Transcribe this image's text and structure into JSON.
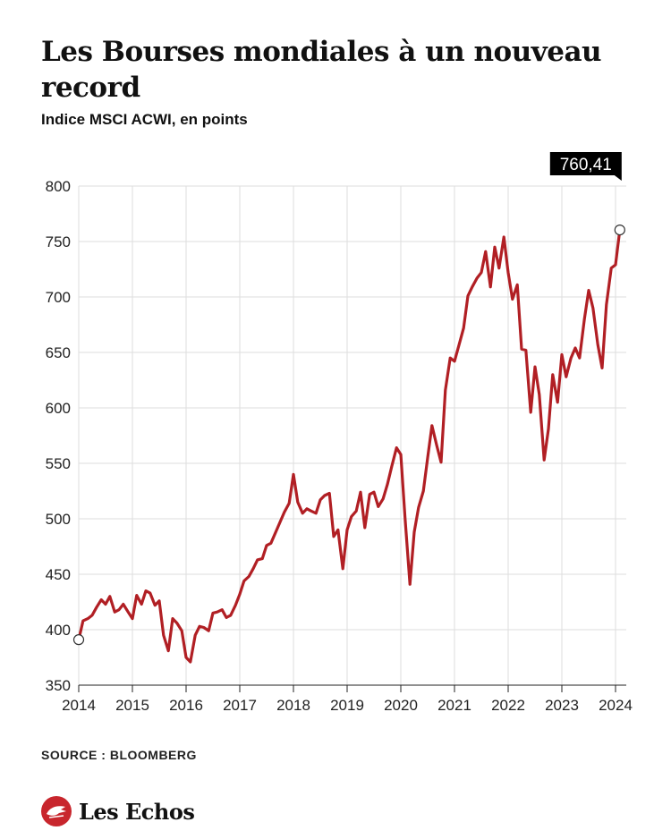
{
  "header": {
    "title": "Les Bourses mondiales à un nouveau record",
    "subtitle": "Indice MSCI ACWI, en points"
  },
  "footer": {
    "source": "SOURCE : BLOOMBERG",
    "brand": "Les Echos"
  },
  "icons": {
    "brand_logo": "les-echos-logo-icon"
  },
  "colors": {
    "line": "#b11f24",
    "grid": "#dddddd",
    "label_bg": "#000000",
    "brand": "#c8262d"
  },
  "chart_data": {
    "type": "line",
    "title": "Les Bourses mondiales à un nouveau record",
    "subtitle": "Indice MSCI ACWI, en points",
    "xlabel": "",
    "ylabel": "",
    "ylim": [
      350,
      800
    ],
    "xlim": [
      2014,
      2024.2
    ],
    "grid": true,
    "y_ticks": [
      350,
      400,
      450,
      500,
      550,
      600,
      650,
      700,
      750,
      800
    ],
    "x_tick_labels": [
      "2014",
      "2015",
      "2016",
      "2017",
      "2018",
      "2019",
      "2020",
      "2021",
      "2022",
      "2023",
      "2024"
    ],
    "annotation": {
      "label": "760,41",
      "x": 2024.17,
      "y": 760.41
    },
    "start_marker": {
      "x": 2014.0,
      "y": 391
    },
    "series": [
      {
        "values": [
          [
            2014.0,
            391
          ],
          [
            2014.08,
            408
          ],
          [
            2014.17,
            410
          ],
          [
            2014.25,
            413
          ],
          [
            2014.33,
            420
          ],
          [
            2014.42,
            427
          ],
          [
            2014.5,
            423
          ],
          [
            2014.58,
            430
          ],
          [
            2014.67,
            416
          ],
          [
            2014.75,
            418
          ],
          [
            2014.83,
            423
          ],
          [
            2014.92,
            416
          ],
          [
            2015.0,
            410
          ],
          [
            2015.08,
            431
          ],
          [
            2015.17,
            423
          ],
          [
            2015.25,
            435
          ],
          [
            2015.33,
            433
          ],
          [
            2015.42,
            422
          ],
          [
            2015.5,
            426
          ],
          [
            2015.58,
            395
          ],
          [
            2015.67,
            381
          ],
          [
            2015.75,
            410
          ],
          [
            2015.83,
            406
          ],
          [
            2015.92,
            399
          ],
          [
            2016.0,
            375
          ],
          [
            2016.08,
            371
          ],
          [
            2016.17,
            395
          ],
          [
            2016.25,
            403
          ],
          [
            2016.33,
            402
          ],
          [
            2016.42,
            399
          ],
          [
            2016.5,
            415
          ],
          [
            2016.58,
            416
          ],
          [
            2016.67,
            418
          ],
          [
            2016.75,
            411
          ],
          [
            2016.83,
            413
          ],
          [
            2016.92,
            422
          ],
          [
            2017.0,
            432
          ],
          [
            2017.08,
            444
          ],
          [
            2017.17,
            448
          ],
          [
            2017.25,
            455
          ],
          [
            2017.33,
            463
          ],
          [
            2017.42,
            464
          ],
          [
            2017.5,
            476
          ],
          [
            2017.58,
            478
          ],
          [
            2017.67,
            488
          ],
          [
            2017.75,
            497
          ],
          [
            2017.83,
            506
          ],
          [
            2017.92,
            514
          ],
          [
            2018.0,
            540
          ],
          [
            2018.08,
            515
          ],
          [
            2018.17,
            505
          ],
          [
            2018.25,
            509
          ],
          [
            2018.33,
            507
          ],
          [
            2018.42,
            505
          ],
          [
            2018.5,
            517
          ],
          [
            2018.58,
            521
          ],
          [
            2018.67,
            523
          ],
          [
            2018.75,
            484
          ],
          [
            2018.83,
            490
          ],
          [
            2018.92,
            455
          ],
          [
            2019.0,
            490
          ],
          [
            2019.08,
            502
          ],
          [
            2019.17,
            507
          ],
          [
            2019.25,
            524
          ],
          [
            2019.33,
            492
          ],
          [
            2019.42,
            522
          ],
          [
            2019.5,
            524
          ],
          [
            2019.58,
            511
          ],
          [
            2019.67,
            518
          ],
          [
            2019.75,
            531
          ],
          [
            2019.83,
            547
          ],
          [
            2019.92,
            564
          ],
          [
            2020.0,
            558
          ],
          [
            2020.08,
            500
          ],
          [
            2020.17,
            441
          ],
          [
            2020.25,
            488
          ],
          [
            2020.33,
            510
          ],
          [
            2020.42,
            525
          ],
          [
            2020.5,
            555
          ],
          [
            2020.58,
            584
          ],
          [
            2020.67,
            566
          ],
          [
            2020.75,
            551
          ],
          [
            2020.83,
            616
          ],
          [
            2020.92,
            645
          ],
          [
            2021.0,
            642
          ],
          [
            2021.08,
            656
          ],
          [
            2021.17,
            672
          ],
          [
            2021.25,
            701
          ],
          [
            2021.33,
            709
          ],
          [
            2021.42,
            717
          ],
          [
            2021.5,
            722
          ],
          [
            2021.58,
            741
          ],
          [
            2021.67,
            709
          ],
          [
            2021.75,
            745
          ],
          [
            2021.83,
            726
          ],
          [
            2021.92,
            754
          ],
          [
            2022.0,
            722
          ],
          [
            2022.08,
            698
          ],
          [
            2022.17,
            711
          ],
          [
            2022.25,
            653
          ],
          [
            2022.33,
            652
          ],
          [
            2022.42,
            596
          ],
          [
            2022.5,
            637
          ],
          [
            2022.58,
            612
          ],
          [
            2022.67,
            553
          ],
          [
            2022.75,
            581
          ],
          [
            2022.83,
            630
          ],
          [
            2022.92,
            605
          ],
          [
            2023.0,
            648
          ],
          [
            2023.08,
            628
          ],
          [
            2023.17,
            645
          ],
          [
            2023.25,
            654
          ],
          [
            2023.33,
            645
          ],
          [
            2023.42,
            680
          ],
          [
            2023.5,
            706
          ],
          [
            2023.58,
            690
          ],
          [
            2023.67,
            657
          ],
          [
            2023.75,
            636
          ],
          [
            2023.83,
            693
          ],
          [
            2023.92,
            726
          ],
          [
            2024.0,
            729
          ],
          [
            2024.08,
            760.41
          ]
        ]
      }
    ]
  }
}
